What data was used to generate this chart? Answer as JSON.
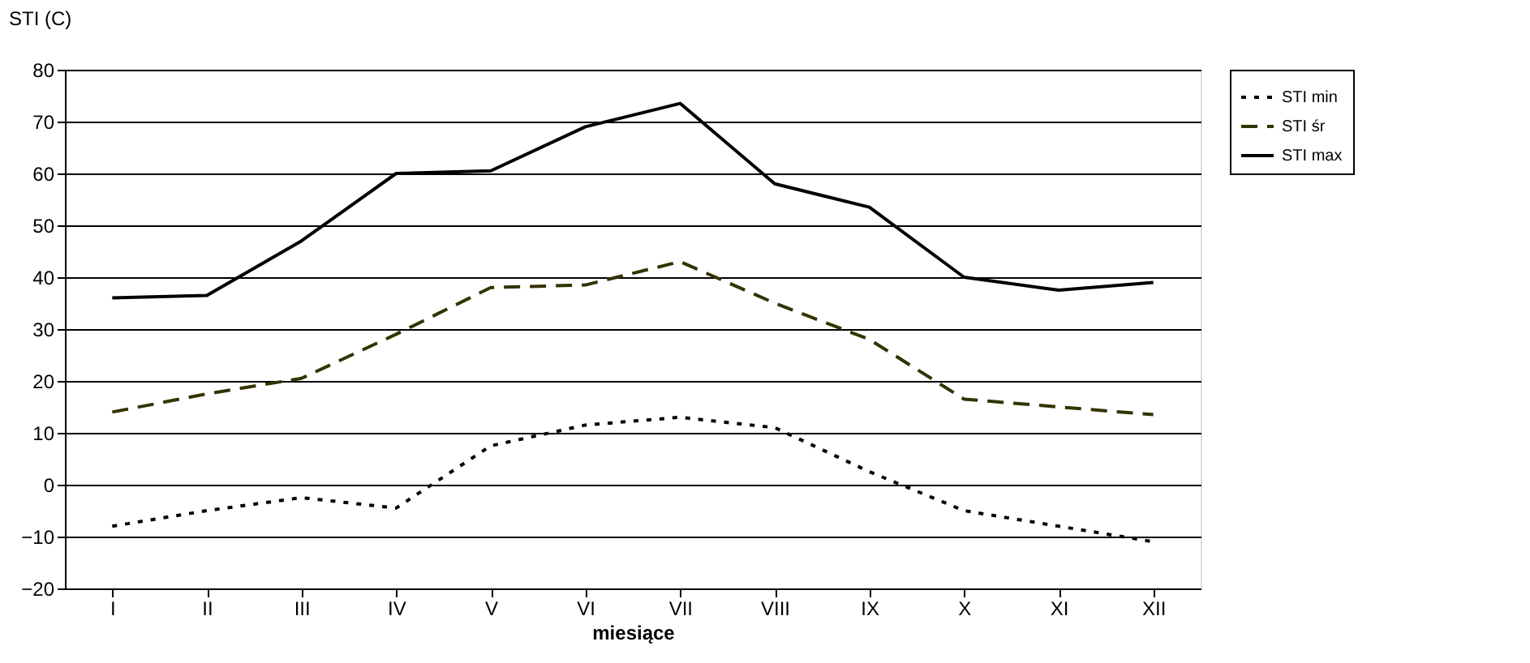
{
  "chart_data": {
    "type": "line",
    "ylabel": "STI (C)",
    "xlabel": "miesiące",
    "categories": [
      "I",
      "II",
      "III",
      "IV",
      "V",
      "VI",
      "VII",
      "VIII",
      "IX",
      "X",
      "XI",
      "XII"
    ],
    "series": [
      {
        "name": "STI min",
        "color": "#000000",
        "line_style": "dotted",
        "values": [
          -8,
          -5,
          -2.5,
          -4.5,
          7.5,
          11.5,
          13,
          11,
          2.5,
          -5,
          -8,
          -11
        ]
      },
      {
        "name": "STI śr",
        "color": "#333300",
        "line_style": "dashed",
        "values": [
          14,
          17.5,
          20.5,
          29,
          38,
          38.5,
          43,
          35,
          28,
          16.5,
          15,
          13.5
        ]
      },
      {
        "name": "STI max",
        "color": "#000000",
        "line_style": "solid",
        "values": [
          36,
          36.5,
          47,
          60,
          60.5,
          69,
          73.5,
          58,
          53.5,
          40,
          37.5,
          39
        ]
      }
    ],
    "ylim": [
      -20,
      80
    ],
    "yticks": [
      -20,
      -10,
      0,
      10,
      20,
      30,
      40,
      50,
      60,
      70,
      80
    ],
    "grid": "y",
    "legend": "right",
    "marker": "none"
  }
}
